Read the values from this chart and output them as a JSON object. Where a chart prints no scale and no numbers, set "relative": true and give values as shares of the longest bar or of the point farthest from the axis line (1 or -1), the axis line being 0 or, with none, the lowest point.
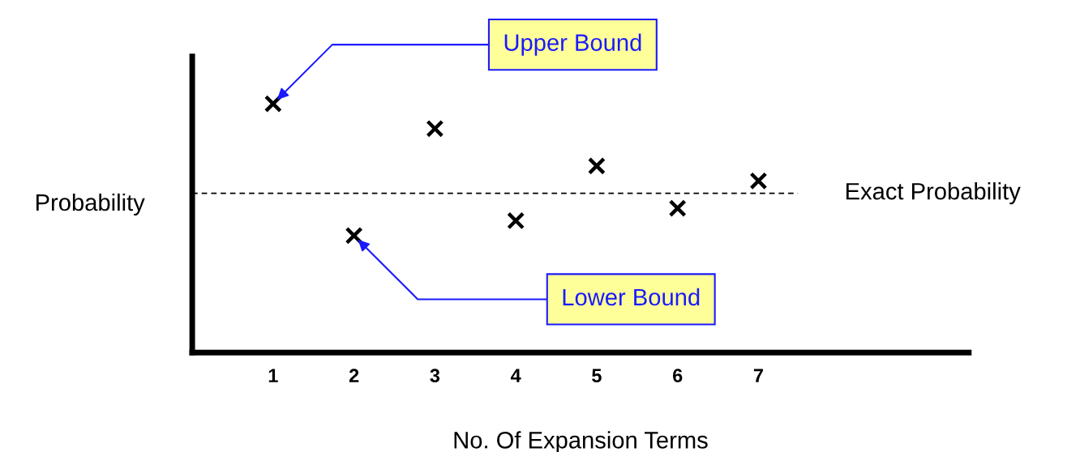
{
  "chart_data": {
    "type": "scatter",
    "relative": true,
    "xlabel": "No. Of Expansion Terms",
    "ylabel": "Probability",
    "x": [
      1,
      2,
      3,
      4,
      5,
      6,
      7
    ],
    "values": [
      1,
      0.47,
      0.9,
      0.53,
      0.75,
      0.58,
      0.69
    ],
    "color": "#000000",
    "marker": "cross",
    "xlim": [
      0,
      9.6
    ],
    "xticks": [
      1,
      2,
      3,
      4,
      5,
      6,
      7
    ],
    "ref_lines": [
      {
        "axis": "y",
        "value": 0.64,
        "label": "Exact Probability",
        "color": "#000000",
        "line_style": "dashed"
      }
    ],
    "annotations": [
      "Upper Bound",
      "Lower Bound"
    ],
    "tick_labels": "x",
    "grid": false
  }
}
